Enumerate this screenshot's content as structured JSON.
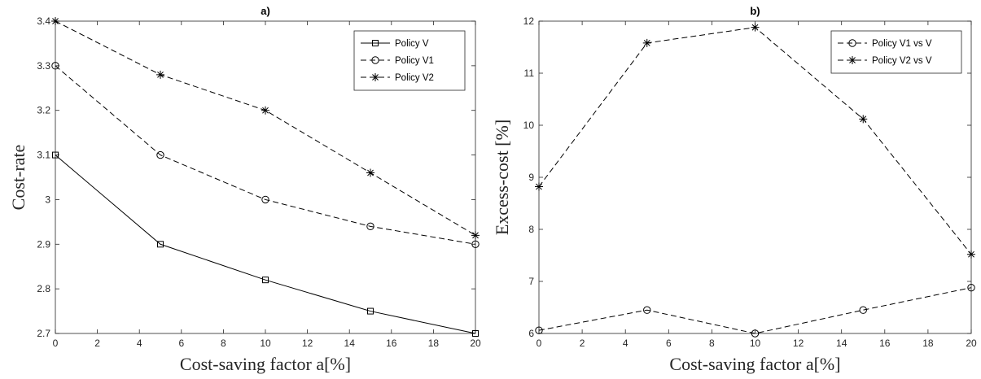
{
  "chart_data": [
    {
      "type": "line",
      "title": "a)",
      "xlabel": "Cost-saving factor a[%]",
      "ylabel": "Cost-rate",
      "xlim": [
        0,
        20
      ],
      "ylim": [
        2.7,
        3.4
      ],
      "xticks": [
        0,
        2,
        4,
        6,
        8,
        10,
        12,
        14,
        16,
        18,
        20
      ],
      "yticks": [
        2.7,
        2.8,
        2.9,
        3,
        3.1,
        3.2,
        3.3,
        3.4
      ],
      "ytick_labels": [
        "2.7",
        "2.8",
        "2.9",
        "3",
        "3.1",
        "3.2",
        "3.3",
        "3.4"
      ],
      "legend_position": "top-right",
      "x": [
        0,
        5,
        10,
        15,
        20
      ],
      "series": [
        {
          "name": "Policy V",
          "values": [
            3.1,
            2.9,
            2.82,
            2.75,
            2.7
          ],
          "marker": "square",
          "linestyle": "solid"
        },
        {
          "name": "Policy V1",
          "values": [
            3.3,
            3.1,
            3.0,
            2.94,
            2.9
          ],
          "marker": "circle",
          "linestyle": "dashed"
        },
        {
          "name": "Policy V2",
          "values": [
            3.4,
            3.28,
            3.2,
            3.06,
            2.92
          ],
          "marker": "star",
          "linestyle": "dashed"
        }
      ]
    },
    {
      "type": "line",
      "title": "b)",
      "xlabel": "Cost-saving factor a[%]",
      "ylabel": "Excess-cost [%]",
      "xlim": [
        0,
        20
      ],
      "ylim": [
        6,
        12
      ],
      "xticks": [
        0,
        2,
        4,
        6,
        8,
        10,
        12,
        14,
        16,
        18,
        20
      ],
      "yticks": [
        6,
        7,
        8,
        9,
        10,
        11,
        12
      ],
      "ytick_labels": [
        "6",
        "7",
        "8",
        "9",
        "10",
        "11",
        "12"
      ],
      "legend_position": "top-right",
      "x": [
        0,
        5,
        10,
        15,
        20
      ],
      "series": [
        {
          "name": "Policy V1 vs V",
          "values": [
            6.06,
            6.45,
            6.0,
            6.45,
            6.88
          ],
          "marker": "circle",
          "linestyle": "dashed"
        },
        {
          "name": "Policy V2 vs V",
          "values": [
            8.82,
            11.58,
            11.88,
            10.12,
            7.52
          ],
          "marker": "star",
          "linestyle": "dashed"
        }
      ]
    }
  ]
}
